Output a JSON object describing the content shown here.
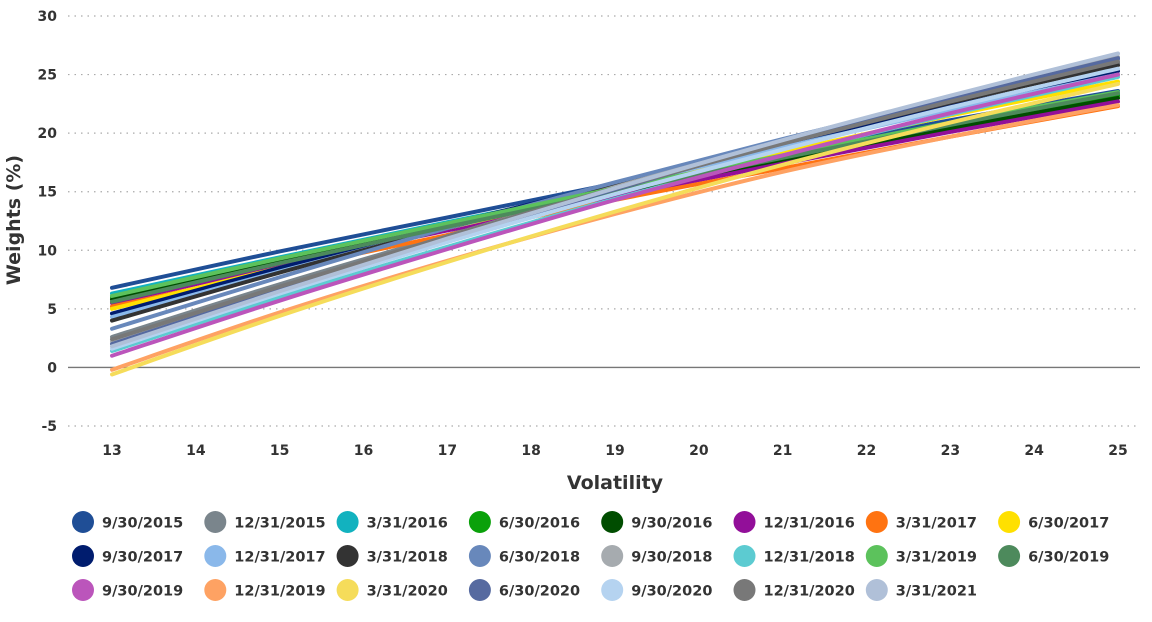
{
  "chart_data": {
    "type": "line",
    "title": "",
    "xlabel": "Volatility",
    "ylabel": "Weights (%)",
    "xlim": [
      13,
      25
    ],
    "ylim": [
      -5,
      30
    ],
    "x_ticks": [
      13,
      14,
      15,
      16,
      17,
      18,
      19,
      20,
      21,
      22,
      23,
      24,
      25
    ],
    "y_ticks": [
      -5,
      0,
      5,
      10,
      15,
      20,
      25,
      30
    ],
    "grid": "horizontal dotted",
    "legend_position": "bottom",
    "x": [
      13,
      15,
      17,
      19,
      21,
      23,
      25
    ],
    "series": [
      {
        "name": "9/30/2015",
        "color": "#1f4e96",
        "values": [
          6.8,
          9.9,
          12.8,
          15.7,
          18.4,
          21.1,
          23.6
        ]
      },
      {
        "name": "12/31/2015",
        "color": "#7a858c",
        "values": [
          2.6,
          7.1,
          11.3,
          15.3,
          19.1,
          22.7,
          26.0
        ]
      },
      {
        "name": "3/31/2016",
        "color": "#12b2bf",
        "values": [
          6.3,
          9.4,
          12.4,
          15.3,
          18.1,
          20.8,
          23.3
        ]
      },
      {
        "name": "6/30/2016",
        "color": "#0aa10a",
        "values": [
          6.0,
          9.2,
          12.2,
          15.1,
          17.9,
          20.6,
          23.2
        ]
      },
      {
        "name": "9/30/2016",
        "color": "#004d00",
        "values": [
          5.8,
          9.0,
          12.0,
          14.9,
          17.7,
          20.4,
          23.0
        ]
      },
      {
        "name": "12/31/2016",
        "color": "#920f99",
        "values": [
          5.5,
          8.7,
          11.7,
          14.6,
          17.4,
          20.1,
          22.7
        ]
      },
      {
        "name": "3/31/2017",
        "color": "#ff7311",
        "values": [
          5.2,
          8.3,
          11.3,
          14.3,
          17.0,
          19.7,
          22.3
        ]
      },
      {
        "name": "6/30/2017",
        "color": "#ffe000",
        "values": [
          5.0,
          8.5,
          11.9,
          15.2,
          18.4,
          21.5,
          24.4
        ]
      },
      {
        "name": "9/30/2017",
        "color": "#001c6e",
        "values": [
          4.6,
          8.5,
          12.2,
          15.7,
          19.1,
          22.3,
          25.3
        ]
      },
      {
        "name": "12/31/2017",
        "color": "#8ab8ea",
        "values": [
          4.3,
          8.2,
          11.9,
          15.4,
          18.8,
          22.0,
          25.0
        ]
      },
      {
        "name": "3/31/2018",
        "color": "#333333",
        "values": [
          4.0,
          8.1,
          11.9,
          15.7,
          19.2,
          22.6,
          25.8
        ]
      },
      {
        "name": "6/30/2018",
        "color": "#6888bb",
        "values": [
          3.3,
          7.7,
          11.9,
          15.8,
          19.5,
          23.0,
          26.3
        ]
      },
      {
        "name": "9/30/2018",
        "color": "#a6abaf",
        "values": [
          2.2,
          6.8,
          11.2,
          15.4,
          19.3,
          23.0,
          26.5
        ]
      },
      {
        "name": "12/31/2018",
        "color": "#5ccbd1",
        "values": [
          1.4,
          6.0,
          10.3,
          14.4,
          18.1,
          21.6,
          24.8
        ]
      },
      {
        "name": "3/31/2019",
        "color": "#5cc25c",
        "values": [
          6.1,
          9.3,
          12.3,
          15.3,
          18.1,
          20.9,
          23.5
        ]
      },
      {
        "name": "6/30/2019",
        "color": "#4d8a5c",
        "values": [
          5.6,
          8.9,
          12.0,
          15.0,
          17.9,
          20.7,
          23.4
        ]
      },
      {
        "name": "9/30/2019",
        "color": "#bb55bb",
        "values": [
          1.0,
          5.7,
          10.1,
          14.3,
          18.1,
          21.7,
          25.0
        ]
      },
      {
        "name": "12/31/2019",
        "color": "#fea263",
        "values": [
          -0.2,
          4.7,
          9.1,
          13.1,
          16.7,
          19.7,
          22.4
        ]
      },
      {
        "name": "3/31/2020",
        "color": "#f5dc5a",
        "values": [
          -0.6,
          4.4,
          9.0,
          13.3,
          17.3,
          20.9,
          24.2
        ]
      },
      {
        "name": "6/30/2020",
        "color": "#566aa0",
        "values": [
          2.0,
          6.6,
          11.0,
          15.2,
          19.2,
          22.9,
          26.4
        ]
      },
      {
        "name": "9/30/2020",
        "color": "#b5d3f0",
        "values": [
          1.6,
          6.3,
          10.7,
          14.8,
          18.6,
          22.2,
          25.5
        ]
      },
      {
        "name": "12/31/2020",
        "color": "#787878",
        "values": [
          2.4,
          6.9,
          11.2,
          15.3,
          19.1,
          22.7,
          26.1
        ]
      },
      {
        "name": "3/31/2021",
        "color": "#b0c0d8",
        "values": [
          1.8,
          6.5,
          11.0,
          15.3,
          19.4,
          23.2,
          26.8
        ]
      }
    ]
  }
}
